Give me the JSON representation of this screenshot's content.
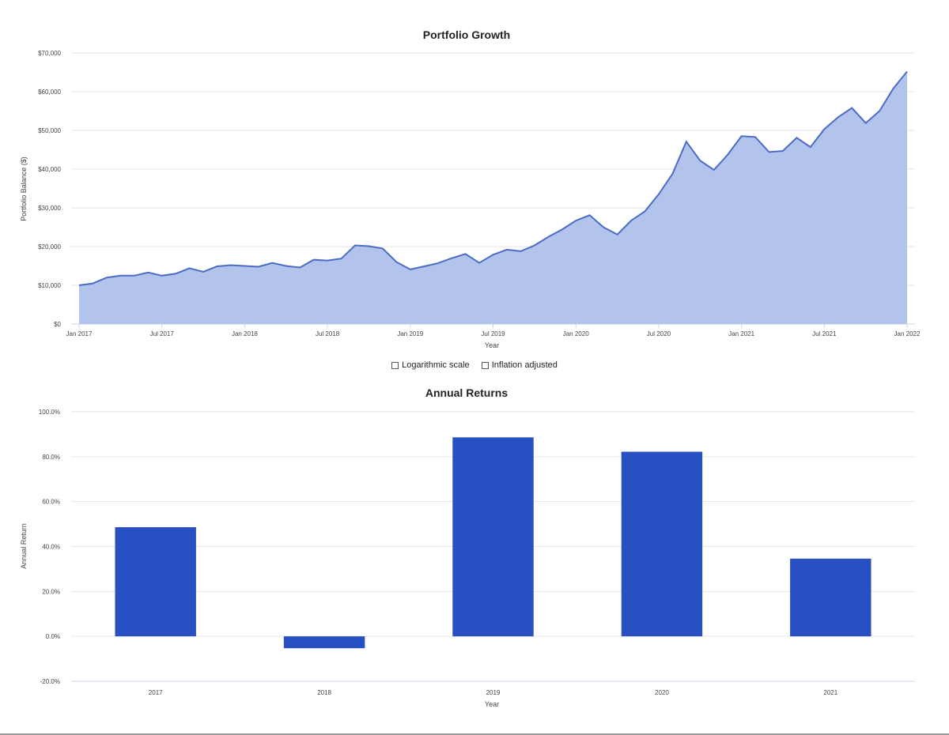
{
  "controls": {
    "log_scale_label": "Logarithmic scale",
    "log_scale_checked": false,
    "inflation_label": "Inflation adjusted",
    "inflation_checked": false
  },
  "colors": {
    "line": "#4b6cc4",
    "area_fill": "#b3c4ec",
    "bar": "#2850c2",
    "grid": "#e6e6e6",
    "axis": "#ccd6eb"
  },
  "chart_data": [
    {
      "type": "area",
      "title": "Portfolio Growth",
      "xlabel": "Year",
      "ylabel": "Portfolio Balance ($)",
      "ylim": [
        0,
        70000
      ],
      "y_ticks": [
        0,
        10000,
        20000,
        30000,
        40000,
        50000,
        60000,
        70000
      ],
      "y_tick_labels": [
        "$0",
        "$10,000",
        "$20,000",
        "$30,000",
        "$40,000",
        "$50,000",
        "$60,000",
        "$70,000"
      ],
      "x_tick_labels": [
        "Jan 2017",
        "Jul 2017",
        "Jan 2018",
        "Jul 2018",
        "Jan 2019",
        "Jul 2019",
        "Jan 2020",
        "Jul 2020",
        "Jan 2021",
        "Jul 2021",
        "Jan 2022"
      ],
      "x_start": "Jan 2017",
      "x_end": "Jan 2022",
      "grid": true,
      "series": [
        {
          "values": [
            10000,
            10500,
            12000,
            12500,
            12500,
            13300,
            12500,
            13000,
            14400,
            13500,
            14900,
            15200,
            15000,
            14800,
            15800,
            15000,
            14600,
            16600,
            16400,
            16900,
            20300,
            20100,
            19500,
            16000,
            14100,
            14900,
            15700,
            17000,
            18100,
            15800,
            17900,
            19200,
            18800,
            20300,
            22500,
            24400,
            26700,
            28100,
            25000,
            23100,
            26700,
            29100,
            33500,
            38800,
            47100,
            42200,
            39800,
            43700,
            48500,
            48300,
            44400,
            44700,
            48100,
            45700,
            50300,
            53400,
            55800,
            51900,
            55000,
            60800,
            65200
          ]
        }
      ]
    },
    {
      "type": "bar",
      "title": "Annual Returns",
      "xlabel": "Year",
      "ylabel": "Annual Return",
      "categories": [
        "2017",
        "2018",
        "2019",
        "2020",
        "2021"
      ],
      "values": [
        48.6,
        -5.3,
        88.6,
        82.2,
        34.6
      ],
      "ylim": [
        -20,
        100
      ],
      "y_ticks": [
        -20,
        0,
        20,
        40,
        60,
        80,
        100
      ],
      "y_tick_labels": [
        "-20.0%",
        "0.0%",
        "20.0%",
        "40.0%",
        "60.0%",
        "80.0%",
        "100.0%"
      ],
      "grid": true
    }
  ]
}
